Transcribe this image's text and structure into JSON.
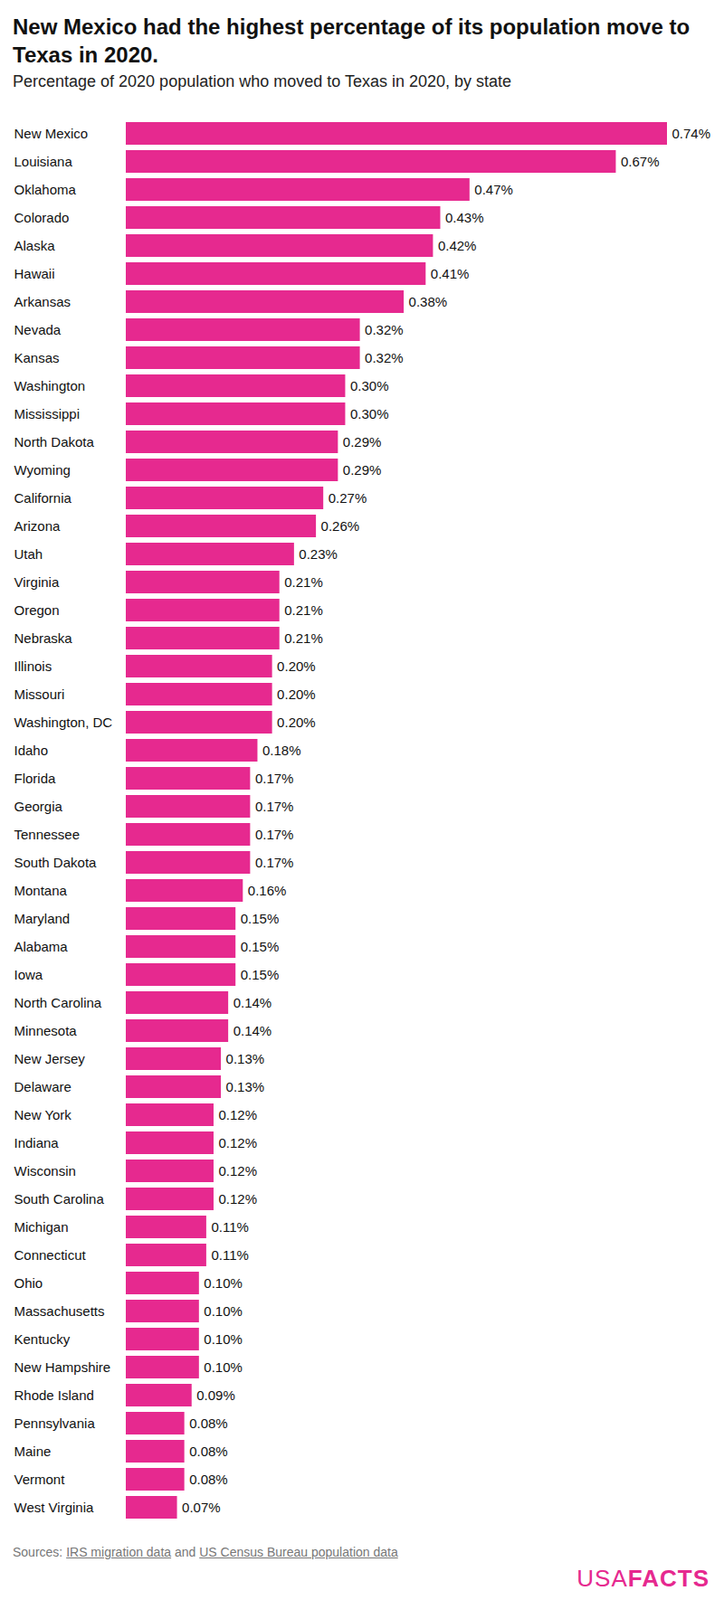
{
  "chart_data": {
    "type": "bar",
    "orientation": "horizontal",
    "title": "New Mexico had the highest percentage of its population move to Texas in 2020.",
    "subtitle": "Percentage of 2020 population who moved to Texas in 2020, by state",
    "categories": [
      "New Mexico",
      "Louisiana",
      "Oklahoma",
      "Colorado",
      "Alaska",
      "Hawaii",
      "Arkansas",
      "Nevada",
      "Kansas",
      "Washington",
      "Mississippi",
      "North Dakota",
      "Wyoming",
      "California",
      "Arizona",
      "Utah",
      "Virginia",
      "Oregon",
      "Nebraska",
      "Illinois",
      "Missouri",
      "Washington, DC",
      "Idaho",
      "Florida",
      "Georgia",
      "Tennessee",
      "South Dakota",
      "Montana",
      "Maryland",
      "Alabama",
      "Iowa",
      "North Carolina",
      "Minnesota",
      "New Jersey",
      "Delaware",
      "New York",
      "Indiana",
      "Wisconsin",
      "South Carolina",
      "Michigan",
      "Connecticut",
      "Ohio",
      "Massachusetts",
      "Kentucky",
      "New Hampshire",
      "Rhode Island",
      "Pennsylvania",
      "Maine",
      "Vermont",
      "West Virginia"
    ],
    "values": [
      0.74,
      0.67,
      0.47,
      0.43,
      0.42,
      0.41,
      0.38,
      0.32,
      0.32,
      0.3,
      0.3,
      0.29,
      0.29,
      0.27,
      0.26,
      0.23,
      0.21,
      0.21,
      0.21,
      0.2,
      0.2,
      0.2,
      0.18,
      0.17,
      0.17,
      0.17,
      0.17,
      0.16,
      0.15,
      0.15,
      0.15,
      0.14,
      0.14,
      0.13,
      0.13,
      0.12,
      0.12,
      0.12,
      0.12,
      0.11,
      0.11,
      0.1,
      0.1,
      0.1,
      0.1,
      0.09,
      0.08,
      0.08,
      0.08,
      0.07
    ],
    "value_labels": [
      "0.74%",
      "0.67%",
      "0.47%",
      "0.43%",
      "0.42%",
      "0.41%",
      "0.38%",
      "0.32%",
      "0.32%",
      "0.30%",
      "0.30%",
      "0.29%",
      "0.29%",
      "0.27%",
      "0.26%",
      "0.23%",
      "0.21%",
      "0.21%",
      "0.21%",
      "0.20%",
      "0.20%",
      "0.20%",
      "0.18%",
      "0.17%",
      "0.17%",
      "0.17%",
      "0.17%",
      "0.16%",
      "0.15%",
      "0.15%",
      "0.15%",
      "0.14%",
      "0.14%",
      "0.13%",
      "0.13%",
      "0.12%",
      "0.12%",
      "0.12%",
      "0.12%",
      "0.11%",
      "0.11%",
      "0.10%",
      "0.10%",
      "0.10%",
      "0.10%",
      "0.09%",
      "0.08%",
      "0.08%",
      "0.08%",
      "0.07%"
    ],
    "color": "#e6298f",
    "xlim": [
      0,
      0.74
    ],
    "data_labels": true,
    "tick_labels": "y",
    "grid": false,
    "source": {
      "prefix": "Sources:",
      "links": [
        "IRS migration data",
        "US Census Bureau population data"
      ],
      "joiner": "and"
    },
    "logo": {
      "light": "USA",
      "bold": "FACTS"
    }
  }
}
